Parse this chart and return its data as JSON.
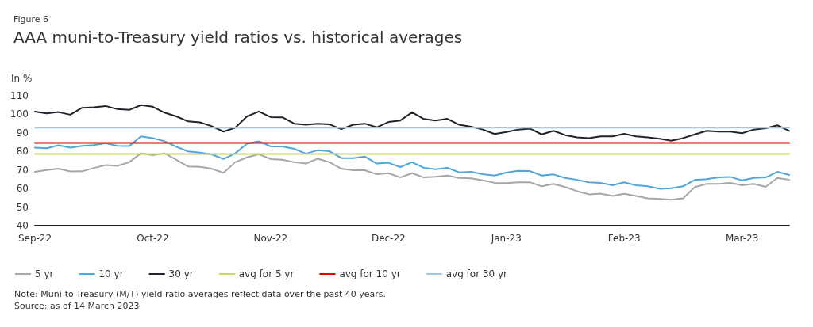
{
  "chart_data": {
    "type": "line",
    "subtitle": "Figure 6",
    "title": "AAA muni-to-Treasury yield ratios vs. historical averages",
    "ylabel": "In %",
    "categories": [
      "Sep-22",
      null,
      null,
      null,
      null,
      null,
      null,
      null,
      null,
      null,
      "Oct-22",
      null,
      null,
      null,
      null,
      null,
      null,
      null,
      null,
      null,
      "Nov-22",
      null,
      null,
      null,
      null,
      null,
      null,
      null,
      null,
      null,
      "Dec-22",
      null,
      null,
      null,
      null,
      null,
      null,
      null,
      null,
      null,
      "Jan-23",
      null,
      null,
      null,
      null,
      null,
      null,
      null,
      null,
      null,
      "Feb-23",
      null,
      null,
      null,
      null,
      null,
      null,
      null,
      null,
      null,
      "Mar-23",
      null,
      null,
      null,
      null
    ],
    "series": [
      {
        "name": "5 yr",
        "color": "#a6a6a6",
        "values": [
          69,
          70,
          70.7,
          69.2,
          69.3,
          71.1,
          72.6,
          72.2,
          74.2,
          79,
          78,
          79,
          75.5,
          71.9,
          71.7,
          70.7,
          68.5,
          74.2,
          76.8,
          78.5,
          75.9,
          75.5,
          74.2,
          73.5,
          76.1,
          74.2,
          70.7,
          69.9,
          69.9,
          67.7,
          68.3,
          66,
          68.3,
          66,
          66.4,
          67,
          65.7,
          65.5,
          64.4,
          63.1,
          62.9,
          63.4,
          63.4,
          61.2,
          62.5,
          60.8,
          58.6,
          56.9,
          57.3,
          56,
          57.2,
          56,
          54.7,
          54.4,
          54,
          54.7,
          60.8,
          62.5,
          62.5,
          63.1,
          61.8,
          62.5,
          60.9,
          65.7,
          64.7
        ]
      },
      {
        "name": "10 yr",
        "color": "#4ea6dc",
        "values": [
          82,
          81.7,
          83.3,
          82,
          83,
          83.4,
          84.5,
          83,
          82.9,
          88.1,
          87.2,
          85.5,
          82.5,
          80,
          79.4,
          78.4,
          75.9,
          79,
          84.2,
          85.5,
          82.7,
          82.7,
          81.4,
          78.8,
          80.7,
          80.1,
          76.4,
          76.4,
          77.2,
          73.5,
          73.9,
          71.6,
          74.2,
          71.2,
          70.4,
          71.2,
          68.7,
          69,
          67.7,
          67,
          68.6,
          69.6,
          69.4,
          67,
          67.6,
          65.7,
          64.7,
          63.4,
          63.1,
          61.8,
          63.4,
          61.8,
          61.2,
          59.9,
          60.2,
          61.2,
          64.7,
          65.1,
          66,
          66.3,
          64.4,
          65.7,
          66,
          69,
          67.3
        ]
      },
      {
        "name": "30 yr",
        "color": "#1f232b",
        "values": [
          101.5,
          100.5,
          101.2,
          99.8,
          103.5,
          103.8,
          104.5,
          102.8,
          102.4,
          105,
          104.1,
          100.9,
          98.9,
          96.2,
          95.7,
          93.6,
          90.7,
          92.8,
          98.9,
          101.5,
          98.5,
          98.4,
          95,
          94.4,
          95,
          94.6,
          92,
          94.4,
          95,
          93,
          95.9,
          96.7,
          101.1,
          97.5,
          96.7,
          97.6,
          94.4,
          93.4,
          91.8,
          89.4,
          90.5,
          91.8,
          92.3,
          89.2,
          91.1,
          88.8,
          87.6,
          87.2,
          88.1,
          88.1,
          89.5,
          88.1,
          87.6,
          86.8,
          85.8,
          87.2,
          89.2,
          91.1,
          90.7,
          90.7,
          89.8,
          91.8,
          92.5,
          94.1,
          91.1
        ]
      },
      {
        "name": "avg for 5 yr",
        "color": "#c5d86d",
        "values": [
          78.6,
          78.6,
          78.6,
          78.6,
          78.6,
          78.6,
          78.6,
          78.6,
          78.6,
          78.6,
          78.6,
          78.6,
          78.6,
          78.6,
          78.6,
          78.6,
          78.6,
          78.6,
          78.6,
          78.6,
          78.6,
          78.6,
          78.6,
          78.6,
          78.6,
          78.6,
          78.6,
          78.6,
          78.6,
          78.6,
          78.6,
          78.6,
          78.6,
          78.6,
          78.6,
          78.6,
          78.6,
          78.6,
          78.6,
          78.6,
          78.6,
          78.6,
          78.6,
          78.6,
          78.6,
          78.6,
          78.6,
          78.6,
          78.6,
          78.6,
          78.6,
          78.6,
          78.6,
          78.6,
          78.6,
          78.6,
          78.6,
          78.6,
          78.6,
          78.6,
          78.6,
          78.6,
          78.6,
          78.6,
          78.6
        ]
      },
      {
        "name": "avg for 10 yr",
        "color": "#e60000",
        "values": [
          84.6,
          84.6,
          84.6,
          84.6,
          84.6,
          84.6,
          84.6,
          84.6,
          84.6,
          84.6,
          84.6,
          84.6,
          84.6,
          84.6,
          84.6,
          84.6,
          84.6,
          84.6,
          84.6,
          84.6,
          84.6,
          84.6,
          84.6,
          84.6,
          84.6,
          84.6,
          84.6,
          84.6,
          84.6,
          84.6,
          84.6,
          84.6,
          84.6,
          84.6,
          84.6,
          84.6,
          84.6,
          84.6,
          84.6,
          84.6,
          84.6,
          84.6,
          84.6,
          84.6,
          84.6,
          84.6,
          84.6,
          84.6,
          84.6,
          84.6,
          84.6,
          84.6,
          84.6,
          84.6,
          84.6,
          84.6,
          84.6,
          84.6,
          84.6,
          84.6,
          84.6,
          84.6,
          84.6,
          84.6,
          84.6
        ]
      },
      {
        "name": "avg for 30 yr",
        "color": "#9ccbe8",
        "values": [
          92.8,
          92.8,
          92.8,
          92.8,
          92.8,
          92.8,
          92.8,
          92.8,
          92.8,
          92.8,
          92.8,
          92.8,
          92.8,
          92.8,
          92.8,
          92.8,
          92.8,
          92.8,
          92.8,
          92.8,
          92.8,
          92.8,
          92.8,
          92.8,
          92.8,
          92.8,
          92.8,
          92.8,
          92.8,
          92.8,
          92.8,
          92.8,
          92.8,
          92.8,
          92.8,
          92.8,
          92.8,
          92.8,
          92.8,
          92.8,
          92.8,
          92.8,
          92.8,
          92.8,
          92.8,
          92.8,
          92.8,
          92.8,
          92.8,
          92.8,
          92.8,
          92.8,
          92.8,
          92.8,
          92.8,
          92.8,
          92.8,
          92.8,
          92.8,
          92.8,
          92.8,
          92.8,
          92.8,
          92.8,
          92.8
        ]
      }
    ],
    "ylim": [
      40,
      110
    ],
    "yticks": [
      40,
      50,
      60,
      70,
      80,
      90,
      100,
      110
    ],
    "grid": false,
    "legend": "bottom",
    "marker": "none",
    "line_style": "solid",
    "annotations": [
      "Note: Muni-to-Treasury (M/T) yield ratio averages reflect data over the past 40 years.",
      "Source: as of 14 March 2023"
    ]
  }
}
